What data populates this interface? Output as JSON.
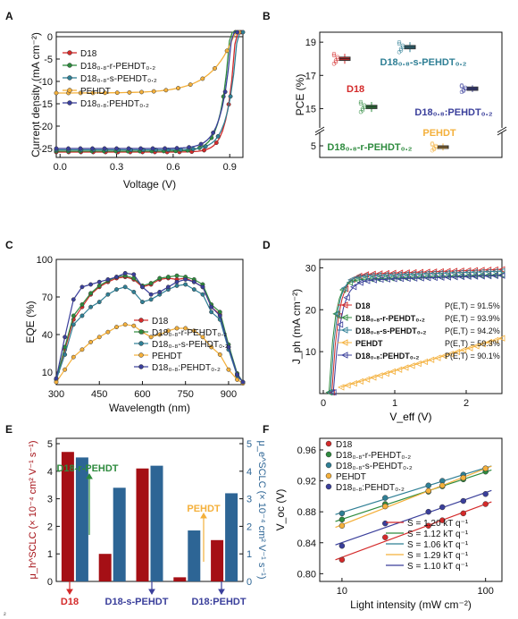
{
  "colors": {
    "d18": "#d42a2a",
    "random": "#2e8b3e",
    "seq": "#2f7f95",
    "pehdt": "#f4b03b",
    "blend": "#3a3f9b",
    "bar_hole": "#a50f15",
    "bar_elec": "#2d6595"
  },
  "chart_data": [
    {
      "panel": "A",
      "type": "line",
      "xlabel": "Voltage (V)",
      "ylabel": "Current density (mA cm⁻²)",
      "xlim": [
        -0.02,
        0.97
      ],
      "ylim": [
        -27,
        1
      ],
      "xticks": [
        "0.0",
        "0.3",
        "0.6",
        "0.9"
      ],
      "yticks": [
        "0",
        "-5",
        "-10",
        "-15",
        "-20",
        "-25"
      ],
      "legend_position": "top-left",
      "series": [
        {
          "name": "D18",
          "key": "d18",
          "jsc": -25.8,
          "voc": 0.93,
          "n": 0.04
        },
        {
          "name": "D18₀.₈-r-PEHDT₀.₂",
          "key": "random",
          "jsc": -25.6,
          "voc": 0.9,
          "n": 0.045
        },
        {
          "name": "D18₀.₈-s-PEHDT₀.₂",
          "key": "seq",
          "jsc": -25.3,
          "voc": 0.94,
          "n": 0.048
        },
        {
          "name": "PEHDT",
          "key": "pehdt",
          "jsc": -12.6,
          "voc": 0.92,
          "n": 0.12
        },
        {
          "name": "D18₀.₈:PEHDT₀.₂",
          "key": "blend",
          "jsc": -25.0,
          "voc": 0.91,
          "n": 0.05
        }
      ]
    },
    {
      "panel": "B",
      "type": "box",
      "ylabel": "PCE (%)",
      "yticks": [
        "5",
        "15",
        "17",
        "19"
      ],
      "boxes": [
        {
          "label": "D18",
          "key": "d18",
          "mean": 18.0,
          "q1": 17.9,
          "q3": 18.1,
          "min": 17.7,
          "max": 18.3
        },
        {
          "label": "D18₀.₈-r-PEHDT₀.₂",
          "key": "random",
          "mean": 15.1,
          "q1": 15.0,
          "q3": 15.2,
          "min": 14.8,
          "max": 15.4
        },
        {
          "label": "D18₀.₈-s-PEHDT₀.₂",
          "key": "seq",
          "mean": 18.7,
          "q1": 18.6,
          "q3": 18.8,
          "min": 18.4,
          "max": 19.0
        },
        {
          "label": "D18₀.₈:PEHDT₀.₂",
          "key": "blend",
          "mean": 16.2,
          "q1": 16.1,
          "q3": 16.3,
          "min": 16.0,
          "max": 16.4
        },
        {
          "label": "PEHDT",
          "key": "pehdt",
          "mean": 4.9,
          "q1": 4.8,
          "q3": 5.0,
          "min": 4.6,
          "max": 5.2
        }
      ]
    },
    {
      "panel": "C",
      "type": "line",
      "xlabel": "Wavelength (nm)",
      "ylabel": "EQE (%)",
      "xlim": [
        300,
        950
      ],
      "ylim": [
        0,
        100
      ],
      "xticks": [
        "300",
        "450",
        "600",
        "750",
        "900"
      ],
      "yticks": [
        "10",
        "40",
        "70",
        "100"
      ],
      "legend_position": "bottom-right",
      "x": [
        300,
        330,
        360,
        390,
        420,
        450,
        480,
        510,
        540,
        570,
        600,
        630,
        660,
        690,
        720,
        750,
        780,
        810,
        840,
        870,
        900,
        930,
        950
      ],
      "series": [
        {
          "name": "D18",
          "key": "d18",
          "values": [
            4,
            28,
            52,
            62,
            72,
            78,
            82,
            85,
            86,
            84,
            78,
            80,
            84,
            85,
            84,
            85,
            82,
            78,
            62,
            56,
            30,
            8,
            2
          ]
        },
        {
          "name": "D18₀.₈-r-PEHDT₀.₂",
          "key": "random",
          "values": [
            4,
            30,
            55,
            64,
            73,
            79,
            83,
            86,
            87,
            85,
            79,
            81,
            85,
            86,
            87,
            86,
            84,
            80,
            64,
            58,
            32,
            9,
            2
          ]
        },
        {
          "name": "D18₀.₈-s-PEHDT₀.₂",
          "key": "seq",
          "values": [
            4,
            24,
            48,
            55,
            62,
            66,
            72,
            76,
            78,
            74,
            66,
            68,
            72,
            76,
            79,
            80,
            76,
            72,
            58,
            52,
            28,
            7,
            2
          ]
        },
        {
          "name": "PEHDT",
          "key": "pehdt",
          "values": [
            2,
            12,
            22,
            28,
            34,
            38,
            42,
            46,
            48,
            47,
            42,
            38,
            40,
            43,
            45,
            45,
            43,
            38,
            30,
            24,
            12,
            4,
            1
          ]
        },
        {
          "name": "D18₀.₈:PEHDT₀.₂",
          "key": "blend",
          "values": [
            5,
            38,
            68,
            78,
            80,
            82,
            84,
            86,
            89,
            88,
            78,
            72,
            74,
            78,
            82,
            84,
            82,
            78,
            62,
            55,
            30,
            8,
            2
          ]
        }
      ]
    },
    {
      "panel": "D",
      "type": "line",
      "xlabel": "V_eff (V)",
      "ylabel": "J_ph (mA cm⁻²)",
      "xlim": [
        -0.05,
        2.5
      ],
      "ylim": [
        0,
        32
      ],
      "xticks": [
        "0",
        "1",
        "2"
      ],
      "yticks": [
        "10",
        "20",
        "30"
      ],
      "legend_position": "bottom-left",
      "legend": [
        {
          "name": "D18",
          "pet": "P(E,T) = 91.5%",
          "key": "d18"
        },
        {
          "name": "D18₀.₈-r-PEHDT₀.₂",
          "pet": "P(E,T) = 93.9%",
          "key": "random"
        },
        {
          "name": "D18₀.₈-s-PEHDT₀.₂",
          "pet": "P(E,T) = 94.2%",
          "key": "seq"
        },
        {
          "name": "PEHDT",
          "pet": "P(E,T) = 59.3%",
          "key": "pehdt"
        },
        {
          "name": "D18₀.₈:PEHDT₀.₂",
          "pet": "P(E,T) = 90.1%",
          "key": "blend"
        }
      ],
      "series": [
        {
          "key": "d18",
          "jsat": 28.2,
          "v0": 0.12,
          "slope": 0.45
        },
        {
          "key": "random",
          "jsat": 27.0,
          "v0": 0.08,
          "slope": 0.4
        },
        {
          "key": "seq",
          "jsat": 27.8,
          "v0": 0.1,
          "slope": 0.42
        },
        {
          "key": "pehdt",
          "jsat": 16.0,
          "v0": 0.25,
          "slope": 0.12
        },
        {
          "key": "blend",
          "jsat": 26.8,
          "v0": 0.14,
          "slope": 0.5
        }
      ]
    },
    {
      "panel": "E",
      "type": "bar",
      "ylabel_left": "μ_h^SCLC (× 10⁻⁴ cm² V⁻¹ s⁻¹)",
      "ylabel_right": "μ_e^SCLC (× 10⁻⁴ cm² V⁻¹ s⁻¹)",
      "ylim": [
        0,
        5
      ],
      "yticks": [
        "0",
        "1",
        "2",
        "3",
        "4",
        "5"
      ],
      "categories": [
        "D18",
        "D18-r-PEHDT",
        "D18-s-PEHDT",
        "PEHDT",
        "D18:PEHDT"
      ],
      "series": [
        {
          "name": "μ_h",
          "key": "bar_hole",
          "values": [
            4.7,
            1.0,
            4.1,
            0.15,
            1.5
          ]
        },
        {
          "name": "μ_e",
          "key": "bar_elec",
          "values": [
            4.5,
            3.4,
            4.2,
            1.85,
            3.2
          ]
        }
      ],
      "annotations": [
        {
          "text": "D18-r-PEHDT",
          "key": "random"
        },
        {
          "text": "PEHDT",
          "key": "pehdt"
        },
        {
          "text": "D18",
          "key": "d18"
        },
        {
          "text": "D18-s-PEHDT",
          "key": "blend"
        },
        {
          "text": "D18:PEHDT",
          "key": "blend"
        }
      ]
    },
    {
      "panel": "F",
      "type": "scatter",
      "xlabel": "Light intensity (mW cm⁻²)",
      "ylabel": "V_oc (V)",
      "xscale": "log",
      "xlim": [
        7,
        130
      ],
      "ylim": [
        0.79,
        0.975
      ],
      "xticks": [
        "10",
        "100"
      ],
      "yticks": [
        "0.80",
        "0.84",
        "0.88",
        "0.92",
        "0.96"
      ],
      "legend_position": "top-left",
      "x": [
        10,
        20,
        40,
        50,
        70,
        100
      ],
      "series": [
        {
          "name": "D18",
          "key": "d18",
          "values": [
            0.818,
            0.847,
            0.862,
            0.869,
            0.878,
            0.89
          ],
          "fit": "S = 1.20 kT q⁻¹"
        },
        {
          "name": "D18₀.₈-r-PEHDT₀.₂",
          "key": "random",
          "values": [
            0.87,
            0.89,
            0.906,
            0.913,
            0.922,
            0.932
          ],
          "fit": "S = 1.12 kT q⁻¹"
        },
        {
          "name": "D18₀.₈-s-PEHDT₀.₂",
          "key": "seq",
          "values": [
            0.878,
            0.898,
            0.914,
            0.92,
            0.928,
            0.936
          ],
          "fit": "S = 1.06 kT q⁻¹"
        },
        {
          "name": "PEHDT",
          "key": "pehdt",
          "values": [
            0.862,
            0.887,
            0.907,
            0.914,
            0.924,
            0.936
          ],
          "fit": "S = 1.29 kT q⁻¹"
        },
        {
          "name": "D18₀.₈:PEHDT₀.₂",
          "key": "blend",
          "values": [
            0.836,
            0.865,
            0.88,
            0.886,
            0.894,
            0.903
          ],
          "fit": "S = 1.10 kT q⁻¹"
        }
      ]
    }
  ],
  "panel_labels": [
    "A",
    "B",
    "C",
    "D",
    "E",
    "F"
  ],
  "footnote": "²"
}
